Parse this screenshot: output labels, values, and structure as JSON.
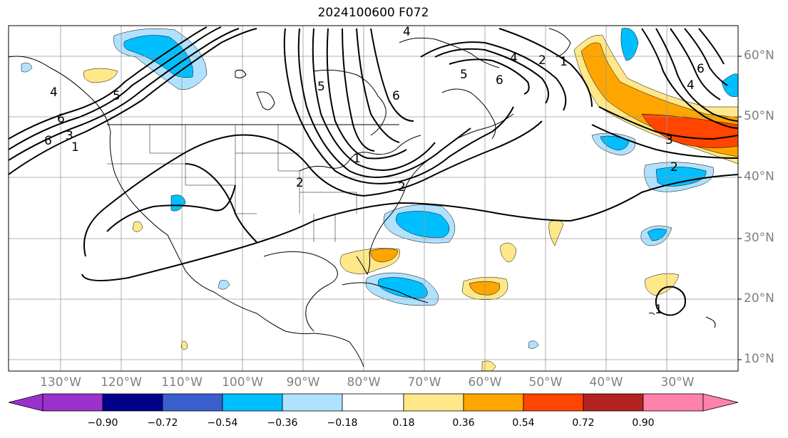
{
  "title": "2024100600 F072",
  "lat_labels": [
    "60°N",
    "50°N",
    "40°N",
    "30°N",
    "20°N",
    "10°N"
  ],
  "lon_labels": [
    "130°W",
    "120°W",
    "110°W",
    "100°W",
    "90°W",
    "80°W",
    "70°W",
    "60°W",
    "50°W",
    "40°W",
    "30°W"
  ],
  "contour_labels": [
    "5",
    "6",
    "4",
    "3",
    "1",
    "6",
    "5",
    "4",
    "2",
    "1",
    "6",
    "5",
    "6",
    "4",
    "2",
    "1",
    "6",
    "4",
    "3",
    "2",
    "2",
    "1"
  ],
  "colorbar": {
    "ticks": [
      "−0.90",
      "−0.72",
      "−0.54",
      "−0.36",
      "−0.18",
      "0.18",
      "0.36",
      "0.54",
      "0.72",
      "0.90"
    ],
    "colors": [
      "#9932cc",
      "#00008b",
      "#3a5fcd",
      "#00bfff",
      "#b0e2ff",
      "#ffffff",
      "#ffe88a",
      "#ffa500",
      "#ff4500",
      "#b22222",
      "#ff82ab"
    ]
  }
}
